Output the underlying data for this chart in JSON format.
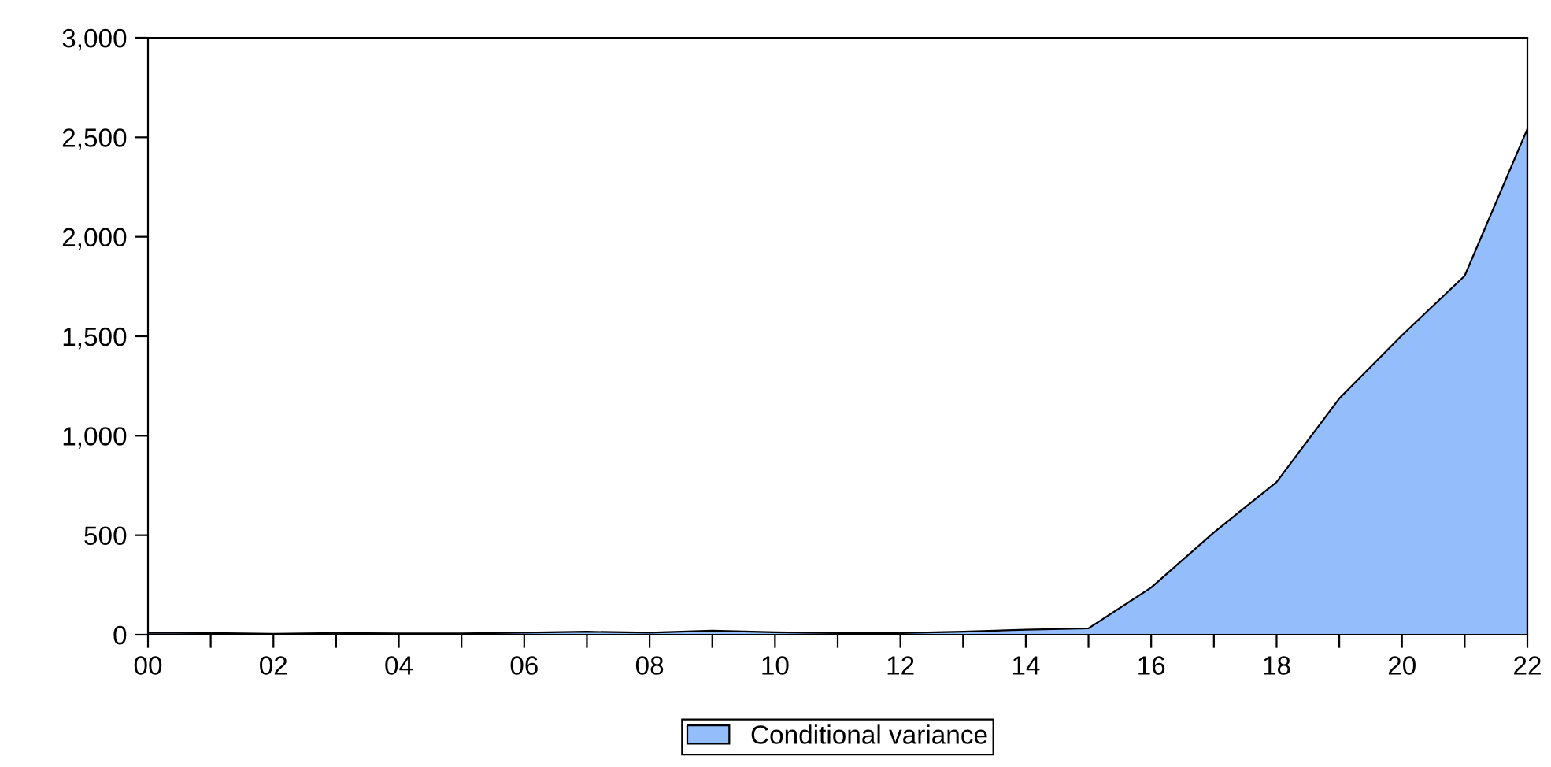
{
  "chart_data": {
    "type": "area",
    "x": [
      2000,
      2001,
      2002,
      2003,
      2004,
      2005,
      2006,
      2007,
      2008,
      2009,
      2010,
      2011,
      2012,
      2013,
      2014,
      2015,
      2016,
      2017,
      2018,
      2019,
      2020,
      2021,
      2022
    ],
    "series": [
      {
        "name": "Conditional variance",
        "color": "#94bdfb",
        "values": [
          10,
          8,
          5,
          8,
          6,
          6,
          10,
          15,
          10,
          20,
          12,
          8,
          8,
          15,
          25,
          32,
          237,
          514,
          767,
          1187,
          1505,
          1804,
          2542
        ]
      }
    ],
    "xlim": [
      2000,
      2022
    ],
    "xticks": [
      {
        "value": 2000,
        "label": "00"
      },
      {
        "value": 2001,
        "label": null
      },
      {
        "value": 2002,
        "label": "02"
      },
      {
        "value": 2003,
        "label": null
      },
      {
        "value": 2004,
        "label": "04"
      },
      {
        "value": 2005,
        "label": null
      },
      {
        "value": 2006,
        "label": "06"
      },
      {
        "value": 2007,
        "label": null
      },
      {
        "value": 2008,
        "label": "08"
      },
      {
        "value": 2009,
        "label": null
      },
      {
        "value": 2010,
        "label": "10"
      },
      {
        "value": 2011,
        "label": null
      },
      {
        "value": 2012,
        "label": "12"
      },
      {
        "value": 2013,
        "label": null
      },
      {
        "value": 2014,
        "label": "14"
      },
      {
        "value": 2015,
        "label": null
      },
      {
        "value": 2016,
        "label": "16"
      },
      {
        "value": 2017,
        "label": null
      },
      {
        "value": 2018,
        "label": "18"
      },
      {
        "value": 2019,
        "label": null
      },
      {
        "value": 2020,
        "label": "20"
      },
      {
        "value": 2021,
        "label": null
      },
      {
        "value": 2022,
        "label": "22"
      }
    ],
    "ylim": [
      0,
      3000
    ],
    "yticks": [
      {
        "value": 0,
        "label": "0"
      },
      {
        "value": 500,
        "label": "500"
      },
      {
        "value": 1000,
        "label": "1,000"
      },
      {
        "value": 1500,
        "label": "1,500"
      },
      {
        "value": 2000,
        "label": "2,000"
      },
      {
        "value": 2500,
        "label": "2,500"
      },
      {
        "value": 3000,
        "label": "3,000"
      }
    ],
    "grid": false,
    "legend": "bottom"
  }
}
